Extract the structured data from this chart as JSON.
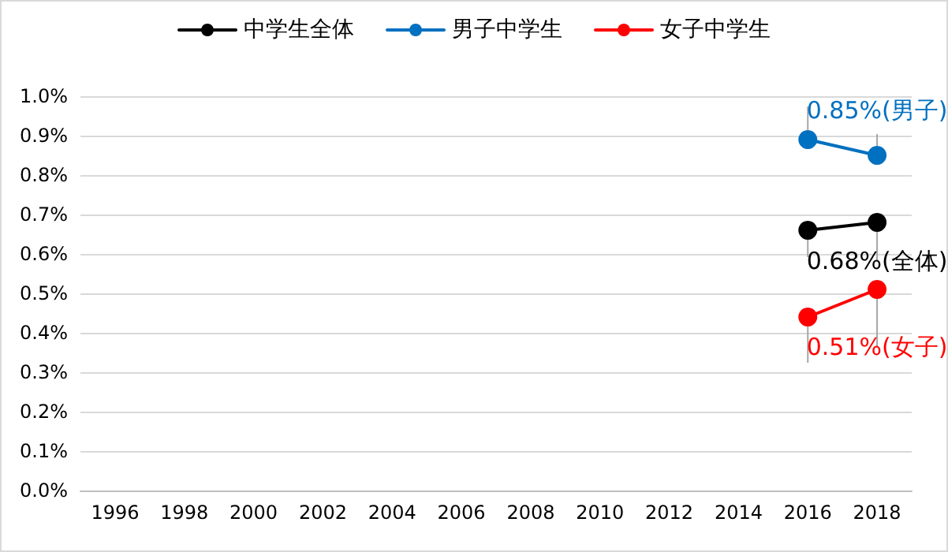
{
  "chart_data": {
    "type": "line",
    "categories": [
      "1996",
      "1998",
      "2000",
      "2002",
      "2004",
      "2006",
      "2008",
      "2010",
      "2012",
      "2014",
      "2016",
      "2018"
    ],
    "series": [
      {
        "name": "中学生全体",
        "color": "#000000",
        "values": [
          null,
          null,
          null,
          null,
          null,
          null,
          null,
          null,
          null,
          null,
          0.66,
          0.68
        ],
        "value_labels": [
          null,
          null,
          null,
          null,
          null,
          null,
          null,
          null,
          null,
          null,
          null,
          "0.68%(全体)"
        ]
      },
      {
        "name": "男子中学生",
        "color": "#0070c0",
        "values": [
          null,
          null,
          null,
          null,
          null,
          null,
          null,
          null,
          null,
          null,
          0.89,
          0.85
        ],
        "value_labels": [
          null,
          null,
          null,
          null,
          null,
          null,
          null,
          null,
          null,
          null,
          null,
          "0.85%(男子)"
        ]
      },
      {
        "name": "女子中学生",
        "color": "#ff0000",
        "values": [
          null,
          null,
          null,
          null,
          null,
          null,
          null,
          null,
          null,
          null,
          0.44,
          0.51
        ],
        "value_labels": [
          null,
          null,
          null,
          null,
          null,
          null,
          null,
          null,
          null,
          null,
          null,
          "0.51%(女子)"
        ]
      }
    ],
    "ylim": [
      0,
      1.0
    ],
    "yticks": [
      {
        "value": 0,
        "label": "0.0%"
      },
      {
        "value": 0.1,
        "label": "0.1%"
      },
      {
        "value": 0.2,
        "label": "0.2%"
      },
      {
        "value": 0.3,
        "label": "0.3%"
      },
      {
        "value": 0.4,
        "label": "0.4%"
      },
      {
        "value": 0.5,
        "label": "0.5%"
      },
      {
        "value": 0.6,
        "label": "0.6%"
      },
      {
        "value": 0.7,
        "label": "0.7%"
      },
      {
        "value": 0.8,
        "label": "0.8%"
      },
      {
        "value": 0.9,
        "label": "0.9%"
      },
      {
        "value": 1.0,
        "label": "1.0%"
      }
    ],
    "grid": "y",
    "legend": "top",
    "marker": "circle",
    "line_style": "solid"
  }
}
